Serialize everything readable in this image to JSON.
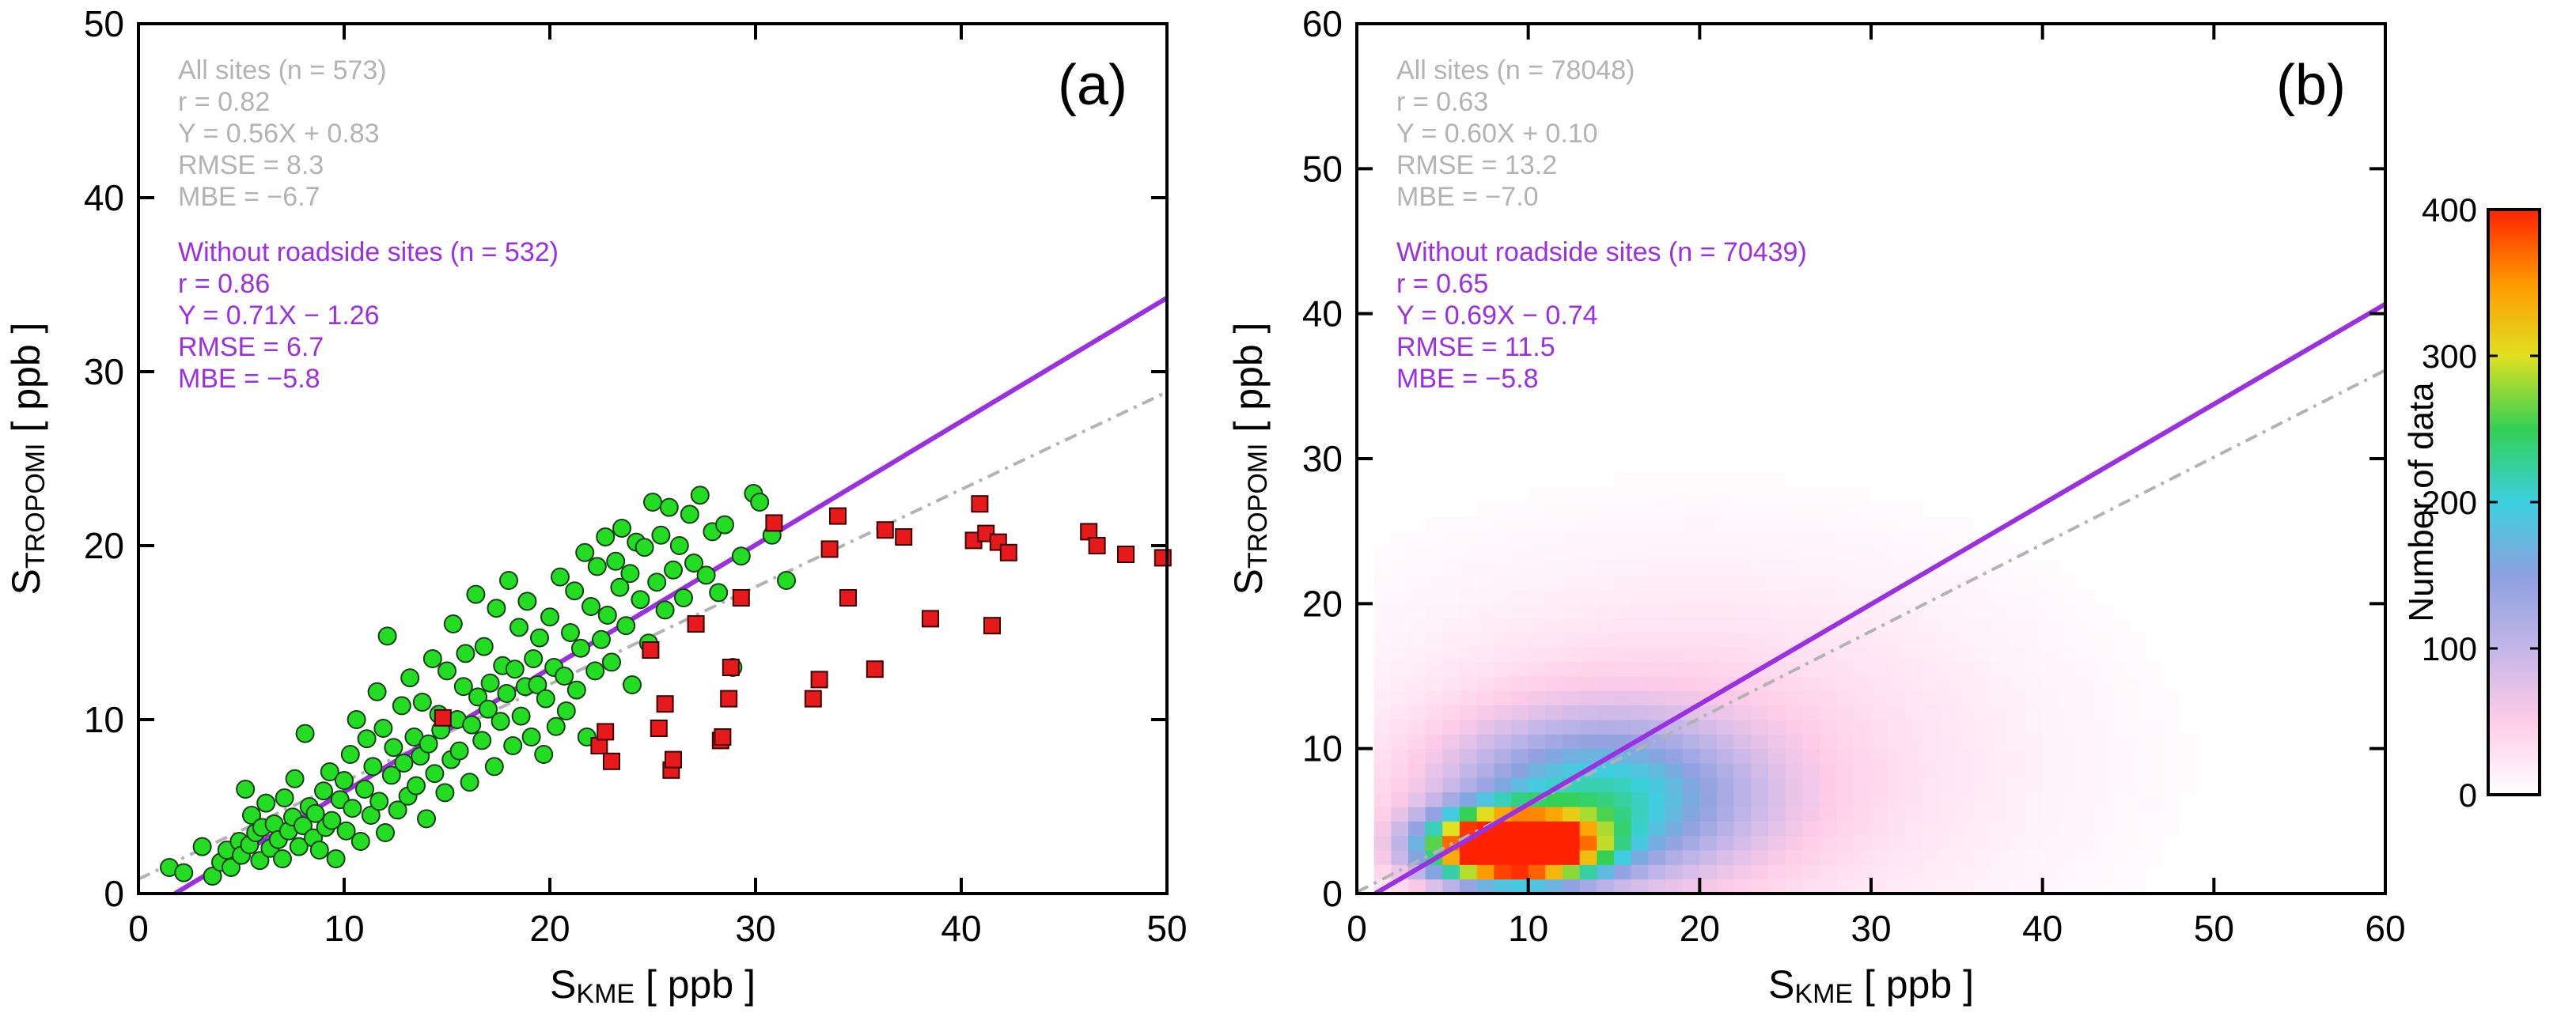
{
  "chart_data": [
    {
      "type": "scatter",
      "panel_label": "(a)",
      "xlabel": {
        "main": "S",
        "sub": "KME",
        "unit": " [ ppb ]"
      },
      "ylabel": {
        "main": "S",
        "sub": "TROPOMI",
        "unit": " [ ppb ]"
      },
      "xlim": [
        0,
        50
      ],
      "ylim": [
        0,
        50
      ],
      "xticks": [
        0,
        10,
        20,
        30,
        40,
        50
      ],
      "yticks": [
        0,
        10,
        20,
        30,
        40,
        50
      ],
      "stats_all": {
        "color": "#b3b3b3",
        "lines": [
          "All sites (n = 573)",
          "r = 0.82",
          "Y = 0.56X + 0.83",
          "RMSE =  8.3",
          "MBE =  −6.7"
        ],
        "slope": 0.56,
        "intercept": 0.83
      },
      "stats_noroad": {
        "color": "#9b30e0",
        "lines": [
          "Without roadside sites (n = 532)",
          "r = 0.86",
          "Y = 0.71X − 1.26",
          "RMSE =   6.7",
          "MBE =  −5.8"
        ],
        "slope": 0.71,
        "intercept": -1.26
      },
      "series": [
        {
          "marker": "circle",
          "color": "#22dd22",
          "points": [
            [
              1.5,
              1.5
            ],
            [
              2.2,
              1.2
            ],
            [
              3.1,
              2.7
            ],
            [
              3.6,
              1.0
            ],
            [
              4.0,
              1.8
            ],
            [
              4.3,
              2.5
            ],
            [
              4.5,
              1.5
            ],
            [
              4.9,
              3.0
            ],
            [
              5.0,
              2.2
            ],
            [
              5.2,
              6.0
            ],
            [
              5.4,
              2.8
            ],
            [
              5.5,
              4.5
            ],
            [
              5.7,
              3.5
            ],
            [
              5.9,
              1.9
            ],
            [
              6.0,
              3.8
            ],
            [
              6.2,
              5.2
            ],
            [
              6.4,
              2.6
            ],
            [
              6.6,
              4.0
            ],
            [
              6.8,
              3.1
            ],
            [
              7.0,
              2.0
            ],
            [
              7.1,
              5.5
            ],
            [
              7.3,
              3.6
            ],
            [
              7.5,
              4.4
            ],
            [
              7.6,
              6.6
            ],
            [
              7.8,
              2.7
            ],
            [
              8.0,
              3.9
            ],
            [
              8.1,
              9.2
            ],
            [
              8.3,
              5.0
            ],
            [
              8.5,
              3.2
            ],
            [
              8.6,
              4.6
            ],
            [
              8.8,
              2.5
            ],
            [
              9.0,
              5.9
            ],
            [
              9.1,
              3.8
            ],
            [
              9.3,
              7.0
            ],
            [
              9.4,
              4.2
            ],
            [
              9.6,
              2.0
            ],
            [
              9.8,
              5.4
            ],
            [
              10.0,
              6.5
            ],
            [
              10.1,
              3.6
            ],
            [
              10.3,
              8.0
            ],
            [
              10.4,
              4.9
            ],
            [
              10.6,
              10.0
            ],
            [
              10.8,
              3.0
            ],
            [
              11.0,
              6.0
            ],
            [
              11.1,
              8.9
            ],
            [
              11.3,
              4.5
            ],
            [
              11.4,
              7.3
            ],
            [
              11.6,
              11.6
            ],
            [
              11.7,
              5.3
            ],
            [
              11.9,
              9.5
            ],
            [
              12.0,
              3.5
            ],
            [
              12.1,
              14.8
            ],
            [
              12.3,
              6.8
            ],
            [
              12.4,
              8.4
            ],
            [
              12.6,
              4.8
            ],
            [
              12.8,
              10.8
            ],
            [
              12.9,
              7.5
            ],
            [
              13.1,
              5.6
            ],
            [
              13.2,
              12.4
            ],
            [
              13.4,
              9.0
            ],
            [
              13.5,
              6.2
            ],
            [
              13.7,
              7.9
            ],
            [
              13.8,
              11.0
            ],
            [
              14.0,
              4.3
            ],
            [
              14.1,
              8.6
            ],
            [
              14.3,
              13.5
            ],
            [
              14.4,
              6.9
            ],
            [
              14.6,
              10.3
            ],
            [
              14.7,
              9.4
            ],
            [
              14.9,
              5.8
            ],
            [
              15.0,
              12.8
            ],
            [
              15.2,
              7.7
            ],
            [
              15.3,
              15.5
            ],
            [
              15.5,
              10.0
            ],
            [
              15.6,
              8.2
            ],
            [
              15.8,
              11.9
            ],
            [
              15.9,
              13.8
            ],
            [
              16.1,
              6.4
            ],
            [
              16.2,
              9.7
            ],
            [
              16.4,
              17.2
            ],
            [
              16.5,
              11.3
            ],
            [
              16.7,
              8.8
            ],
            [
              16.8,
              14.2
            ],
            [
              17.0,
              10.6
            ],
            [
              17.1,
              12.1
            ],
            [
              17.3,
              7.3
            ],
            [
              17.4,
              16.4
            ],
            [
              17.6,
              9.9
            ],
            [
              17.7,
              13.1
            ],
            [
              17.9,
              11.5
            ],
            [
              18.0,
              18.0
            ],
            [
              18.2,
              8.5
            ],
            [
              18.3,
              12.9
            ],
            [
              18.5,
              15.3
            ],
            [
              18.6,
              10.2
            ],
            [
              18.8,
              11.9
            ],
            [
              18.9,
              16.8
            ],
            [
              19.1,
              9.0
            ],
            [
              19.2,
              13.5
            ],
            [
              19.4,
              12.0
            ],
            [
              19.5,
              14.7
            ],
            [
              19.7,
              8.0
            ],
            [
              19.8,
              11.2
            ],
            [
              20.0,
              15.9
            ],
            [
              20.2,
              13.0
            ],
            [
              20.3,
              9.6
            ],
            [
              20.5,
              18.2
            ],
            [
              20.7,
              12.5
            ],
            [
              20.8,
              10.5
            ],
            [
              21.0,
              15.0
            ],
            [
              21.2,
              17.4
            ],
            [
              21.3,
              11.7
            ],
            [
              21.5,
              14.1
            ],
            [
              21.7,
              19.6
            ],
            [
              21.8,
              9.0
            ],
            [
              22.0,
              16.5
            ],
            [
              22.2,
              12.8
            ],
            [
              22.3,
              18.8
            ],
            [
              22.5,
              14.6
            ],
            [
              22.7,
              20.5
            ],
            [
              22.8,
              16.0
            ],
            [
              23.0,
              13.3
            ],
            [
              23.2,
              19.1
            ],
            [
              23.4,
              17.6
            ],
            [
              23.5,
              21.0
            ],
            [
              23.7,
              15.4
            ],
            [
              23.9,
              18.4
            ],
            [
              24.0,
              12.0
            ],
            [
              24.2,
              20.2
            ],
            [
              24.4,
              16.9
            ],
            [
              24.6,
              19.9
            ],
            [
              24.8,
              14.4
            ],
            [
              25.0,
              22.5
            ],
            [
              25.2,
              17.9
            ],
            [
              25.4,
              20.6
            ],
            [
              25.6,
              16.3
            ],
            [
              25.8,
              22.2
            ],
            [
              26.0,
              18.6
            ],
            [
              26.3,
              20.0
            ],
            [
              26.5,
              17.0
            ],
            [
              26.8,
              21.8
            ],
            [
              27.0,
              19.0
            ],
            [
              27.3,
              22.9
            ],
            [
              27.6,
              18.3
            ],
            [
              27.9,
              20.8
            ],
            [
              28.2,
              17.3
            ],
            [
              28.5,
              21.2
            ],
            [
              28.9,
              13.0
            ],
            [
              29.3,
              19.4
            ],
            [
              29.9,
              23.0
            ],
            [
              30.2,
              22.5
            ],
            [
              30.8,
              20.6
            ],
            [
              31.5,
              18.0
            ]
          ]
        },
        {
          "marker": "square",
          "color": "#e8191b",
          "points": [
            [
              14.8,
              10.1
            ],
            [
              22.4,
              8.5
            ],
            [
              22.7,
              9.3
            ],
            [
              23.0,
              7.6
            ],
            [
              24.9,
              14.0
            ],
            [
              25.3,
              9.5
            ],
            [
              25.6,
              10.9
            ],
            [
              25.9,
              7.1
            ],
            [
              26.0,
              7.7
            ],
            [
              27.1,
              15.5
            ],
            [
              28.3,
              8.8
            ],
            [
              28.4,
              9.0
            ],
            [
              28.7,
              11.2
            ],
            [
              28.8,
              13.0
            ],
            [
              29.3,
              17.0
            ],
            [
              30.9,
              21.3
            ],
            [
              32.8,
              11.2
            ],
            [
              33.1,
              12.3
            ],
            [
              33.6,
              19.8
            ],
            [
              34.0,
              21.7
            ],
            [
              34.5,
              17.0
            ],
            [
              35.8,
              12.9
            ],
            [
              36.3,
              20.9
            ],
            [
              37.2,
              20.5
            ],
            [
              38.5,
              15.8
            ],
            [
              40.6,
              20.3
            ],
            [
              40.9,
              22.4
            ],
            [
              41.2,
              20.7
            ],
            [
              41.5,
              15.4
            ],
            [
              41.8,
              20.2
            ],
            [
              42.3,
              19.6
            ],
            [
              46.2,
              20.8
            ],
            [
              46.6,
              20.0
            ],
            [
              48.0,
              19.5
            ],
            [
              49.8,
              19.3
            ]
          ]
        }
      ]
    },
    {
      "type": "heatmap",
      "panel_label": "(b)",
      "xlabel": {
        "main": "S",
        "sub": "KME",
        "unit": " [ ppb ]"
      },
      "ylabel": {
        "main": "S",
        "sub": "TROPOMI",
        "unit": " [ ppb ]"
      },
      "xlim": [
        0,
        60
      ],
      "ylim": [
        0,
        60
      ],
      "xticks": [
        0,
        10,
        20,
        30,
        40,
        50,
        60
      ],
      "yticks": [
        0,
        10,
        20,
        30,
        40,
        50,
        60
      ],
      "bin_size": 1,
      "stats_all": {
        "color": "#b3b3b3",
        "lines": [
          "All sites (n =  78048)",
          "r = 0.63",
          "Y = 0.60X + 0.10",
          "RMSE = 13.2",
          "MBE =  −7.0"
        ],
        "slope": 0.6,
        "intercept": 0.1
      },
      "stats_noroad": {
        "color": "#9b30e0",
        "lines": [
          "Without roadside sites (n =  70439)",
          "r = 0.65",
          "Y = 0.69X − 0.74",
          "RMSE = 11.5",
          "MBE =  −5.8"
        ],
        "slope": 0.69,
        "intercept": -0.74
      },
      "density_model": [
        {
          "cx": 9.0,
          "cy": 3.2,
          "sx": 3.2,
          "sy": 1.6,
          "peak": 560
        },
        {
          "cx": 14.0,
          "cy": 6.5,
          "sx": 6.0,
          "sy": 3.8,
          "peak": 180
        },
        {
          "cx": 20.0,
          "cy": 9.0,
          "sx": 13.0,
          "sy": 9.0,
          "peak": 45
        }
      ],
      "colorbar": {
        "label": "Number of data",
        "min": 0,
        "max": 400,
        "ticks": [
          0,
          100,
          200,
          300,
          400
        ],
        "colors": [
          "#ffffff",
          "#ffcce8",
          "#c3b6e8",
          "#8da0e0",
          "#3bd0e0",
          "#33d055",
          "#e0e020",
          "#ff9900",
          "#ff2200"
        ]
      }
    }
  ]
}
